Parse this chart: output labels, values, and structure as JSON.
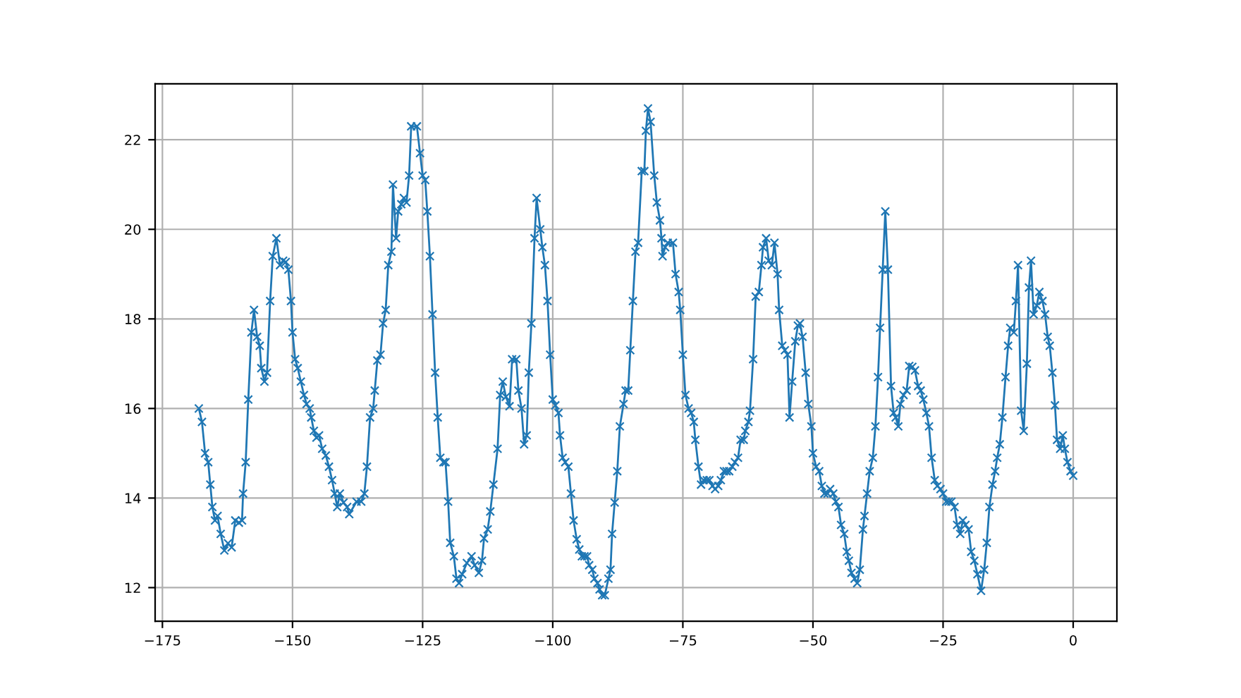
{
  "chart_data": {
    "type": "line",
    "marker": "cross",
    "line_style": "solid",
    "grid": true,
    "xlim": [
      -176.4,
      8.4
    ],
    "ylim": [
      11.25,
      23.25
    ],
    "xticks": [
      {
        "value": -175,
        "label": "−175"
      },
      {
        "value": -150,
        "label": "−150"
      },
      {
        "value": -125,
        "label": "−125"
      },
      {
        "value": -100,
        "label": "−100"
      },
      {
        "value": -75,
        "label": "−75"
      },
      {
        "value": -50,
        "label": "−50"
      },
      {
        "value": -25,
        "label": "−25"
      },
      0
    ],
    "yticks": [
      12,
      14,
      16,
      18,
      20,
      22
    ],
    "series": [
      {
        "color": "#1f77b4",
        "x": [
          -168,
          -167.4,
          -166.8,
          -166.2,
          -165.8,
          -165.4,
          -164.9,
          -164.4,
          -163.8,
          -163.1,
          -162.4,
          -161.7,
          -161,
          -160.3,
          -159.7,
          -159.5,
          -159,
          -158.5,
          -157.9,
          -157.4,
          -156.8,
          -156.3,
          -156,
          -155.4,
          -154.9,
          -154.3,
          -153.8,
          -153.1,
          -152.4,
          -151.8,
          -151.3,
          -150.8,
          -150.3,
          -150,
          -149.5,
          -149,
          -148.4,
          -147.8,
          -147.3,
          -146.7,
          -146.4,
          -145.9,
          -145.4,
          -144.9,
          -144.3,
          -143.6,
          -143,
          -142.4,
          -141.9,
          -141.4,
          -140.9,
          -140.2,
          -139.5,
          -139.1,
          -137.7,
          -136.8,
          -136.2,
          -135.7,
          -135.1,
          -134.5,
          -134.2,
          -133.7,
          -133.1,
          -132.6,
          -132.1,
          -131.6,
          -131,
          -130.7,
          -130.1,
          -129.7,
          -129.1,
          -128.6,
          -128.1,
          -127.6,
          -127.2,
          -126.1,
          -125.5,
          -125,
          -124.5,
          -124.1,
          -123.6,
          -123.1,
          -122.6,
          -122.1,
          -121.6,
          -121,
          -120.6,
          -120.1,
          -119.7,
          -119,
          -118.5,
          -118,
          -117.4,
          -116.5,
          -115.6,
          -115,
          -114.2,
          -113.6,
          -113.2,
          -112.5,
          -112,
          -111.4,
          -110.6,
          -110.1,
          -109.6,
          -109,
          -108.3,
          -107.8,
          -107,
          -106.6,
          -106,
          -105.5,
          -105,
          -104.6,
          -104.1,
          -103.5,
          -103.1,
          -102.4,
          -102,
          -101.5,
          -101,
          -100.5,
          -100,
          -99.5,
          -98.9,
          -98.6,
          -98.1,
          -97.6,
          -97,
          -96.5,
          -96,
          -95.4,
          -94.9,
          -94.4,
          -93.9,
          -93.4,
          -93,
          -92.4,
          -92,
          -91.4,
          -91,
          -90.5,
          -90,
          -89.3,
          -88.9,
          -88.6,
          -88.1,
          -87.6,
          -87.1,
          -86.4,
          -86,
          -85.5,
          -85.1,
          -84.6,
          -84.1,
          -83.6,
          -82.9,
          -82.4,
          -82.1,
          -81.7,
          -81.2,
          -80.5,
          -80,
          -79.4,
          -79.1,
          -78.9,
          -78.4,
          -77.9,
          -76.9,
          -76.4,
          -75.8,
          -75.5,
          -75,
          -74.5,
          -73.9,
          -73.4,
          -72.9,
          -72.6,
          -72,
          -71.5,
          -71,
          -70.4,
          -69.9,
          -69.3,
          -68.8,
          -68.2,
          -67.7,
          -67.1,
          -66.6,
          -66.1,
          -65.5,
          -65,
          -64.4,
          -63.9,
          -63.3,
          -63,
          -62.4,
          -62.1,
          -61.5,
          -61,
          -60.4,
          -59.9,
          -59.6,
          -59,
          -58.5,
          -57.9,
          -57.4,
          -56.8,
          -56.5,
          -55.9,
          -55.4,
          -54.9,
          -54.5,
          -54,
          -53.4,
          -52.9,
          -52.5,
          -52,
          -51.4,
          -50.9,
          -50.3,
          -50,
          -49.4,
          -48.8,
          -48.3,
          -47.8,
          -47.2,
          -46.7,
          -46.1,
          -45.6,
          -45.1,
          -44.6,
          -44,
          -43.5,
          -43.1,
          -42.6,
          -42,
          -41.5,
          -41,
          -40.4,
          -40.1,
          -39.6,
          -39.1,
          -38.5,
          -38,
          -37.5,
          -37.1,
          -36.6,
          -36.1,
          -35.6,
          -35,
          -34.5,
          -34.1,
          -33.6,
          -33.2,
          -32.6,
          -32,
          -31.5,
          -30.9,
          -30.4,
          -29.8,
          -29.3,
          -28.8,
          -28.2,
          -27.7,
          -27.2,
          -26.6,
          -26.1,
          -25.5,
          -25,
          -24.4,
          -23.9,
          -23.4,
          -22.8,
          -22.3,
          -21.7,
          -21.2,
          -20.7,
          -20.1,
          -19.6,
          -19,
          -18.4,
          -17.7,
          -17.1,
          -16.6,
          -16.1,
          -15.5,
          -15,
          -14.6,
          -14.1,
          -13.6,
          -13,
          -12.5,
          -12.1,
          -11.4,
          -11,
          -10.6,
          -10,
          -9.5,
          -8.9,
          -8.5,
          -8.1,
          -7.6,
          -7,
          -6.5,
          -5.9,
          -5.4,
          -4.9,
          -4.5,
          -4,
          -3.5,
          -3.1,
          -2.5,
          -2,
          -1.6,
          -1.1,
          -0.5,
          0
        ],
        "values": [
          16.0,
          15.7,
          15.0,
          14.8,
          14.3,
          13.8,
          13.5,
          13.6,
          13.2,
          12.83,
          12.99,
          12.9,
          13.5,
          13.45,
          13.5,
          14.1,
          14.8,
          16.2,
          17.7,
          18.2,
          17.6,
          17.4,
          16.9,
          16.6,
          16.8,
          18.4,
          19.4,
          19.8,
          19.2,
          19.3,
          19.27,
          19.1,
          18.4,
          17.7,
          17.1,
          16.9,
          16.6,
          16.3,
          16.1,
          16.0,
          15.8,
          15.5,
          15.35,
          15.4,
          15.1,
          14.95,
          14.7,
          14.4,
          14.1,
          13.8,
          14.1,
          13.9,
          13.8,
          13.64,
          13.92,
          13.92,
          14.1,
          14.7,
          15.8,
          16.0,
          16.4,
          17.07,
          17.2,
          17.9,
          18.2,
          19.2,
          19.5,
          21.0,
          19.8,
          20.4,
          20.56,
          20.7,
          20.6,
          21.2,
          22.3,
          22.3,
          21.7,
          21.2,
          21.1,
          20.4,
          19.4,
          18.1,
          16.8,
          15.8,
          14.9,
          14.8,
          14.8,
          13.92,
          13.0,
          12.7,
          12.2,
          12.1,
          12.3,
          12.55,
          12.7,
          12.5,
          12.33,
          12.6,
          13.1,
          13.3,
          13.7,
          14.3,
          15.1,
          16.3,
          16.6,
          16.26,
          16.05,
          17.1,
          17.1,
          16.4,
          16.0,
          15.2,
          15.4,
          16.8,
          17.9,
          19.8,
          20.7,
          20.0,
          19.6,
          19.2,
          18.4,
          17.2,
          16.2,
          16.07,
          15.9,
          15.4,
          14.9,
          14.8,
          14.7,
          14.1,
          13.5,
          13.08,
          12.85,
          12.7,
          12.7,
          12.7,
          12.5,
          12.4,
          12.2,
          12.1,
          11.96,
          11.83,
          11.83,
          12.2,
          12.4,
          13.2,
          13.9,
          14.6,
          15.6,
          16.1,
          16.4,
          16.4,
          17.3,
          18.4,
          19.5,
          19.7,
          21.3,
          21.3,
          22.2,
          22.7,
          22.4,
          21.2,
          20.6,
          20.2,
          19.8,
          19.4,
          19.6,
          19.7,
          19.7,
          19.0,
          18.6,
          18.2,
          17.2,
          16.3,
          16.0,
          15.9,
          15.7,
          15.3,
          14.7,
          14.3,
          14.4,
          14.4,
          14.4,
          14.27,
          14.2,
          14.27,
          14.4,
          14.6,
          14.6,
          14.6,
          14.7,
          14.8,
          14.9,
          15.3,
          15.3,
          15.5,
          15.7,
          15.95,
          17.1,
          18.5,
          18.6,
          19.2,
          19.6,
          19.8,
          19.3,
          19.2,
          19.7,
          19.0,
          18.2,
          17.4,
          17.3,
          17.2,
          15.8,
          16.6,
          17.5,
          17.85,
          17.9,
          17.6,
          16.8,
          16.1,
          15.6,
          15.0,
          14.7,
          14.6,
          14.27,
          14.1,
          14.1,
          14.2,
          14.1,
          13.92,
          13.8,
          13.4,
          13.2,
          12.8,
          12.6,
          12.33,
          12.2,
          12.1,
          12.4,
          13.3,
          13.6,
          14.1,
          14.6,
          14.9,
          15.6,
          16.7,
          17.8,
          19.1,
          20.4,
          19.1,
          16.5,
          15.9,
          15.8,
          15.6,
          16.1,
          16.3,
          16.4,
          16.95,
          16.93,
          16.85,
          16.5,
          16.4,
          16.2,
          15.9,
          15.6,
          14.9,
          14.4,
          14.27,
          14.2,
          14.1,
          13.92,
          13.92,
          13.92,
          13.8,
          13.4,
          13.2,
          13.5,
          13.4,
          13.3,
          12.8,
          12.6,
          12.3,
          11.93,
          12.4,
          13.0,
          13.8,
          14.3,
          14.6,
          14.9,
          15.2,
          15.8,
          16.7,
          17.4,
          17.8,
          17.7,
          18.4,
          19.2,
          15.95,
          15.5,
          17.0,
          18.7,
          19.3,
          18.1,
          18.3,
          18.6,
          18.4,
          18.1,
          17.6,
          17.4,
          16.8,
          16.07,
          15.3,
          15.1,
          15.4,
          15.1,
          14.8,
          14.6,
          14.5
        ]
      }
    ]
  }
}
